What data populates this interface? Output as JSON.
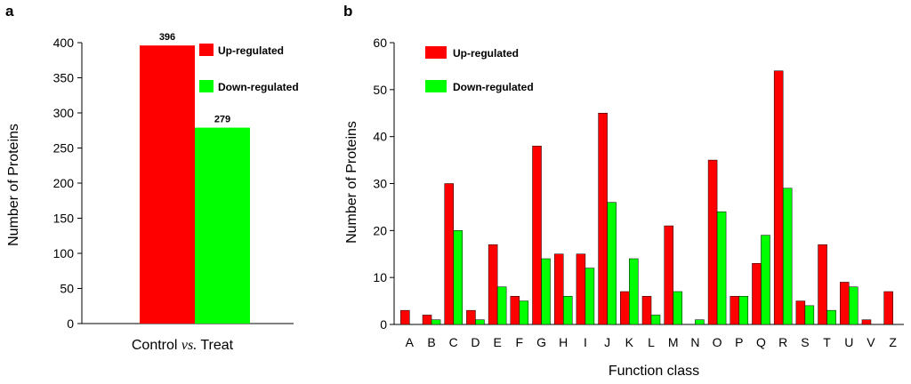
{
  "chart_data": [
    {
      "panel": "a",
      "type": "bar",
      "categories": [
        "Control vs. Treat"
      ],
      "xlabel_parts": [
        "Control ",
        "vs.",
        " Treat"
      ],
      "ylabel": "Number of Proteins",
      "ylim": [
        0,
        400
      ],
      "yticks": [
        0,
        50,
        100,
        150,
        200,
        250,
        300,
        350,
        400
      ],
      "series": [
        {
          "name": "Up-regulated",
          "values": [
            396
          ],
          "color": "#ff0000"
        },
        {
          "name": "Down-regulated",
          "values": [
            279
          ],
          "color": "#00ff00"
        }
      ],
      "data_labels": [
        "396",
        "279"
      ],
      "legend": "top-right"
    },
    {
      "panel": "b",
      "type": "bar",
      "categories": [
        "A",
        "B",
        "C",
        "D",
        "E",
        "F",
        "G",
        "H",
        "I",
        "J",
        "K",
        "L",
        "M",
        "N",
        "O",
        "P",
        "Q",
        "R",
        "S",
        "T",
        "U",
        "V",
        "Z"
      ],
      "xlabel": "Function  class",
      "ylabel": "Number of Proteins",
      "ylim": [
        0,
        60
      ],
      "yticks": [
        0,
        10,
        20,
        30,
        40,
        50,
        60
      ],
      "series": [
        {
          "name": "Up-regulated",
          "color": "#ff0000",
          "values": [
            3,
            2,
            30,
            3,
            17,
            6,
            38,
            15,
            15,
            45,
            7,
            6,
            21,
            0,
            35,
            6,
            13,
            54,
            5,
            17,
            9,
            1,
            7
          ]
        },
        {
          "name": "Down-regulated",
          "color": "#00ff00",
          "values": [
            0,
            1,
            20,
            1,
            8,
            5,
            14,
            6,
            12,
            26,
            14,
            2,
            7,
            1,
            24,
            6,
            19,
            29,
            4,
            3,
            8,
            0,
            0
          ]
        }
      ],
      "legend": "top-left"
    }
  ]
}
